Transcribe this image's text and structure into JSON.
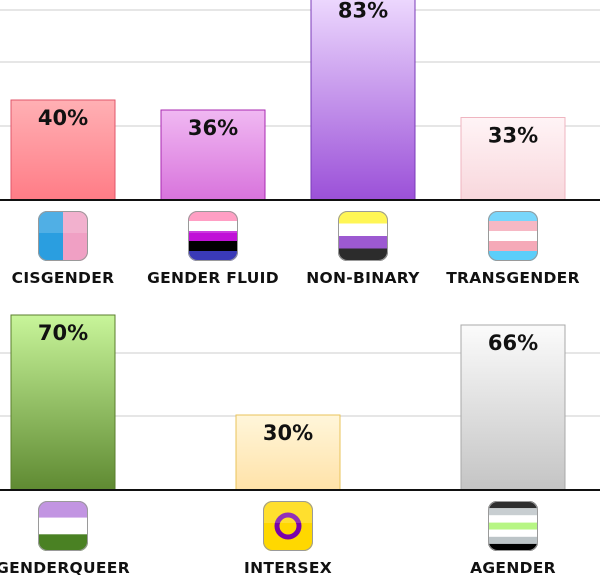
{
  "chart_data": [
    {
      "type": "bar",
      "categories": [
        "CISGENDER",
        "GENDER FLUID",
        "NON-BINARY",
        "TRANSGENDER"
      ],
      "values": [
        40,
        36,
        83,
        33
      ],
      "value_labels": [
        "40%",
        "36%",
        "83%",
        "33%"
      ],
      "ylim": [
        0,
        100
      ],
      "grid": true,
      "colors": [
        {
          "top": "#ffb0b4",
          "bottom": "#ff7c86",
          "border": "#e0566a"
        },
        {
          "top": "#f0b8f2",
          "bottom": "#d873dc",
          "border": "#a82ab0"
        },
        {
          "top": "#efdcff",
          "bottom": "#9b50d8",
          "border": "#7a3bb8"
        },
        {
          "top": "#fff4f6",
          "bottom": "#f8d7dc",
          "border": "#efb5c0"
        }
      ],
      "flag_icons": [
        "cisgender-flag-icon",
        "genderfluid-flag-icon",
        "nonbinary-flag-icon",
        "transgender-flag-icon"
      ]
    },
    {
      "type": "bar",
      "categories": [
        "GENDERQUEER",
        "INTERSEX",
        "AGENDER"
      ],
      "values": [
        70,
        30,
        66
      ],
      "value_labels": [
        "70%",
        "30%",
        "66%"
      ],
      "ylim": [
        0,
        100
      ],
      "grid": true,
      "colors": [
        {
          "top": "#c8f59a",
          "bottom": "#5f8a32",
          "border": "#5a7e2c"
        },
        {
          "top": "#fff6da",
          "bottom": "#ffe2a8",
          "border": "#e8c35a"
        },
        {
          "top": "#fbfbfb",
          "bottom": "#c4c4c4",
          "border": "#a8a8a8"
        }
      ],
      "flag_icons": [
        "genderqueer-flag-icon",
        "intersex-flag-icon",
        "agender-flag-icon"
      ]
    }
  ]
}
